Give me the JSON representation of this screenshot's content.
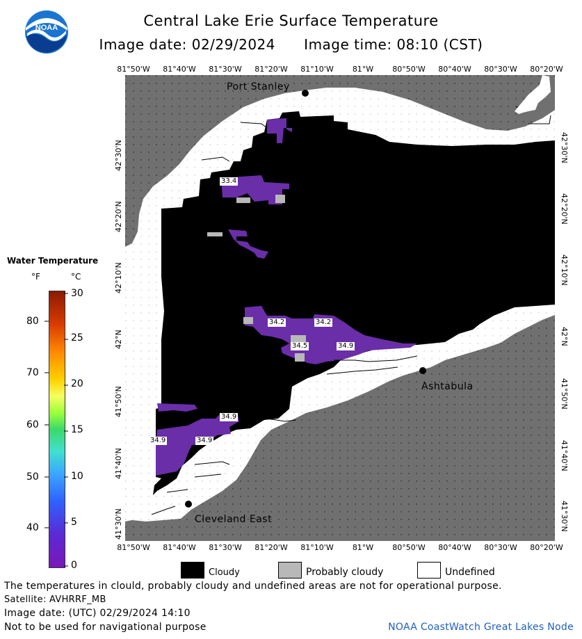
{
  "header": {
    "title": "Central Lake Erie Surface Temperature",
    "image_date": "Image date: 02/29/2024",
    "image_time": "Image time: 08:10 (CST)"
  },
  "logo": {
    "text": "NOAA",
    "icon": "noaa-logo"
  },
  "longitude_ticks": [
    "81°50'W",
    "81°40'W",
    "81°30'W",
    "81°20'W",
    "81°10'W",
    "81°W",
    "80°50'W",
    "80°40'W",
    "80°30'W",
    "80°20'W"
  ],
  "latitude_ticks": [
    "42°30'N",
    "42°20'N",
    "42°10'N",
    "42°N",
    "41°50'N",
    "41°40'N",
    "41°30'N"
  ],
  "places": {
    "port_stanley": "Port Stanley",
    "ashtabula": "Ashtabula",
    "cleveland_east": "Cleveland East"
  },
  "temp_labels": [
    "33.4",
    "34.2",
    "34.2",
    "34.5",
    "34.9",
    "34.9",
    "34.9",
    "34.9"
  ],
  "legend": {
    "title": "Water Temperature",
    "unit_f": "°F",
    "unit_c": "°C",
    "fahrenheit_ticks": [
      "80",
      "70",
      "60",
      "50",
      "40"
    ],
    "celsius_ticks": [
      "30",
      "25",
      "20",
      "15",
      "10",
      "5",
      "0"
    ]
  },
  "key": {
    "cloudy": "Cloudy",
    "probably_cloudy": "Probably cloudy",
    "undefined": "Undefined"
  },
  "colors": {
    "land": "#707070",
    "cloud": "#000000",
    "water_cold": "#6a2ea8",
    "probably_cloudy": "#b8b8b8",
    "undefined": "#ffffff",
    "credit": "#1f5fbf"
  },
  "footer": {
    "disclaimer": "The temperatures in clould, probably cloudy and undefined areas are not for operational purpose.",
    "satellite": "Satellite: AVHRRF_MB",
    "utc_date": "Image date: (UTC) 02/29/2024  14:10",
    "navigation": "Not to be used for navigational purpose",
    "credit": "NOAA CoastWatch Great Lakes Node"
  }
}
